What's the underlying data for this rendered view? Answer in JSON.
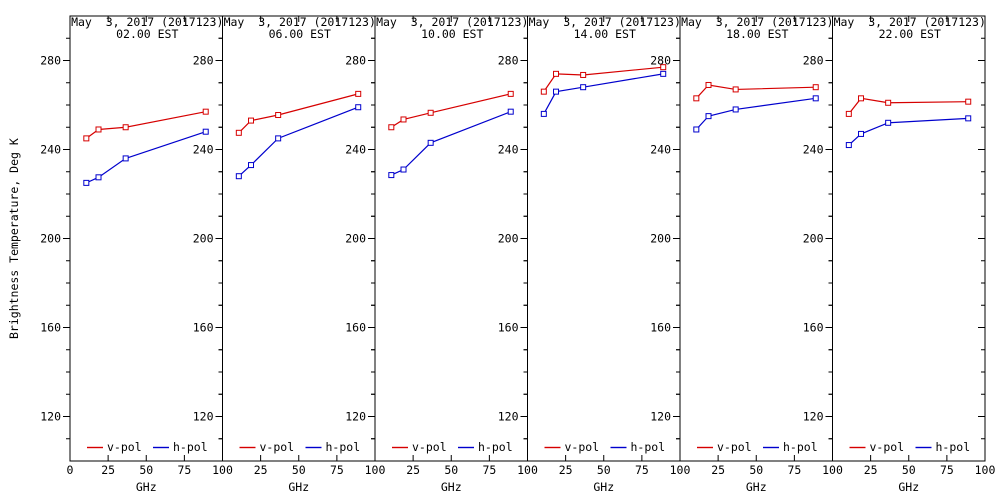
{
  "figure": {
    "ylabel": "Brightness Temperature, Deg K",
    "background": "#ffffff",
    "axis_color": "#000000",
    "text_color": "#000000"
  },
  "legend": {
    "v_label": "v-pol",
    "h_label": "h-pol",
    "v_color": "#d60000",
    "h_color": "#0000cd",
    "position": "bottom-inside-each-panel"
  },
  "chart_data": [
    {
      "type": "line",
      "title": "May  3, 2017 (2017123)",
      "subtitle": "02.00 EST",
      "xlabel": "GHz",
      "x": [
        10.7,
        18.7,
        36.5,
        89
      ],
      "series": [
        {
          "name": "v-pol",
          "color": "#d60000",
          "values": [
            245,
            249,
            250,
            257
          ]
        },
        {
          "name": "h-pol",
          "color": "#0000cd",
          "values": [
            225,
            227.5,
            236,
            248
          ]
        }
      ],
      "xlim": [
        0,
        100
      ],
      "ylim": [
        100,
        300
      ],
      "xticks": [
        0,
        25,
        50,
        75,
        100
      ],
      "yticks": [
        120,
        160,
        200,
        240,
        280
      ],
      "grid": false
    },
    {
      "type": "line",
      "title": "May  3, 2017 (2017123)",
      "subtitle": "06.00 EST",
      "xlabel": "GHz",
      "x": [
        10.7,
        18.7,
        36.5,
        89
      ],
      "series": [
        {
          "name": "v-pol",
          "color": "#d60000",
          "values": [
            247.5,
            253,
            255.5,
            265
          ]
        },
        {
          "name": "h-pol",
          "color": "#0000cd",
          "values": [
            228,
            233,
            245,
            259
          ]
        }
      ],
      "xlim": [
        0,
        100
      ],
      "ylim": [
        100,
        300
      ],
      "xticks": [
        25,
        50,
        75,
        100
      ],
      "yticks": [
        120,
        160,
        200,
        240,
        280
      ],
      "grid": false
    },
    {
      "type": "line",
      "title": "May  3, 2017 (2017123)",
      "subtitle": "10.00 EST",
      "xlabel": "GHz",
      "x": [
        10.7,
        18.7,
        36.5,
        89
      ],
      "series": [
        {
          "name": "v-pol",
          "color": "#d60000",
          "values": [
            250,
            253.5,
            256.5,
            265
          ]
        },
        {
          "name": "h-pol",
          "color": "#0000cd",
          "values": [
            228.5,
            231,
            243,
            257
          ]
        }
      ],
      "xlim": [
        0,
        100
      ],
      "ylim": [
        100,
        300
      ],
      "xticks": [
        25,
        50,
        75,
        100
      ],
      "yticks": [
        120,
        160,
        200,
        240,
        280
      ],
      "grid": false
    },
    {
      "type": "line",
      "title": "May  3, 2017 (2017123)",
      "subtitle": "14.00 EST",
      "xlabel": "GHz",
      "x": [
        10.7,
        18.7,
        36.5,
        89
      ],
      "series": [
        {
          "name": "v-pol",
          "color": "#d60000",
          "values": [
            266,
            274,
            273.5,
            277
          ]
        },
        {
          "name": "h-pol",
          "color": "#0000cd",
          "values": [
            256,
            266,
            268,
            274
          ]
        }
      ],
      "xlim": [
        0,
        100
      ],
      "ylim": [
        100,
        300
      ],
      "xticks": [
        25,
        50,
        75,
        100
      ],
      "yticks": [
        120,
        160,
        200,
        240,
        280
      ],
      "grid": false
    },
    {
      "type": "line",
      "title": "May  3, 2017 (2017123)",
      "subtitle": "18.00 EST",
      "xlabel": "GHz",
      "x": [
        10.7,
        18.7,
        36.5,
        89
      ],
      "series": [
        {
          "name": "v-pol",
          "color": "#d60000",
          "values": [
            263,
            269,
            267,
            268
          ]
        },
        {
          "name": "h-pol",
          "color": "#0000cd",
          "values": [
            249,
            255,
            258,
            263
          ]
        }
      ],
      "xlim": [
        0,
        100
      ],
      "ylim": [
        100,
        300
      ],
      "xticks": [
        25,
        50,
        75,
        100
      ],
      "yticks": [
        120,
        160,
        200,
        240,
        280
      ],
      "grid": false
    },
    {
      "type": "line",
      "title": "May  3, 2017 (2017123)",
      "subtitle": "22.00 EST",
      "xlabel": "GHz",
      "x": [
        10.7,
        18.7,
        36.5,
        89
      ],
      "series": [
        {
          "name": "v-pol",
          "color": "#d60000",
          "values": [
            256,
            263,
            261,
            261.5
          ]
        },
        {
          "name": "h-pol",
          "color": "#0000cd",
          "values": [
            242,
            247,
            252,
            254
          ]
        }
      ],
      "xlim": [
        0,
        100
      ],
      "ylim": [
        100,
        300
      ],
      "xticks": [
        25,
        50,
        75,
        100
      ],
      "yticks": [
        120,
        160,
        200,
        240,
        280
      ],
      "grid": false
    }
  ]
}
